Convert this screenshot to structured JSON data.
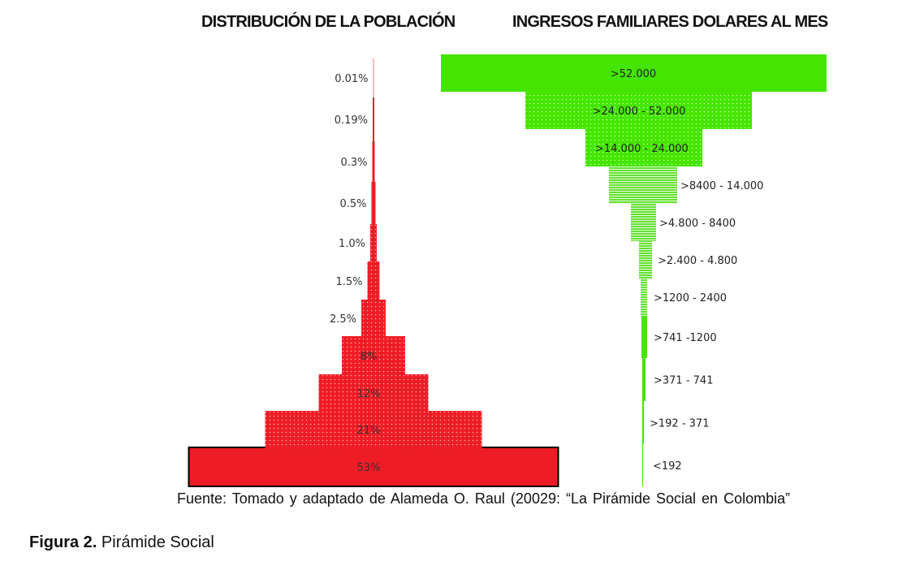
{
  "titles": {
    "left": "DISTRIBUCIÓN DE LA POBLACIÓN",
    "right": "INGRESOS FAMILIARES DOLARES AL MES"
  },
  "chart_data": [
    {
      "type": "bar",
      "orientation": "horizontal-pyramid",
      "title": "DISTRIBUCIÓN DE LA POBLACIÓN",
      "categories": [
        "53%",
        "21%",
        "12%",
        "8%",
        "2.5%",
        "1.5%",
        "1.0%",
        "0.5%",
        "0.3%",
        "0.19%",
        "0.01%"
      ],
      "values": [
        53,
        21,
        12,
        8,
        2.5,
        1.5,
        1.0,
        0.5,
        0.3,
        0.19,
        0.01
      ],
      "unit": "%",
      "color": "#ee1c25"
    },
    {
      "type": "bar",
      "orientation": "horizontal-funnel",
      "title": "INGRESOS FAMILIARES DOLARES AL MES",
      "categories": [
        ">52.000",
        ">24.000 - 52.000",
        ">14.000 - 24.000",
        ">8400 - 14.000",
        ">4.800 - 8400",
        ">2.400 - 4.800",
        ">1200 - 2400",
        ">741 -1200",
        ">371 - 741",
        ">192 - 371",
        "<192"
      ],
      "color": "#44e500"
    }
  ],
  "source": "Fuente: Tomado y adaptado de Alameda O. Raul (20029: “La Pirámide Social en Colombia”",
  "caption": {
    "label": "Figura 2.",
    "text": "Pirámide Social"
  },
  "colors": {
    "population": "#ee1c25",
    "income": "#44e500"
  }
}
